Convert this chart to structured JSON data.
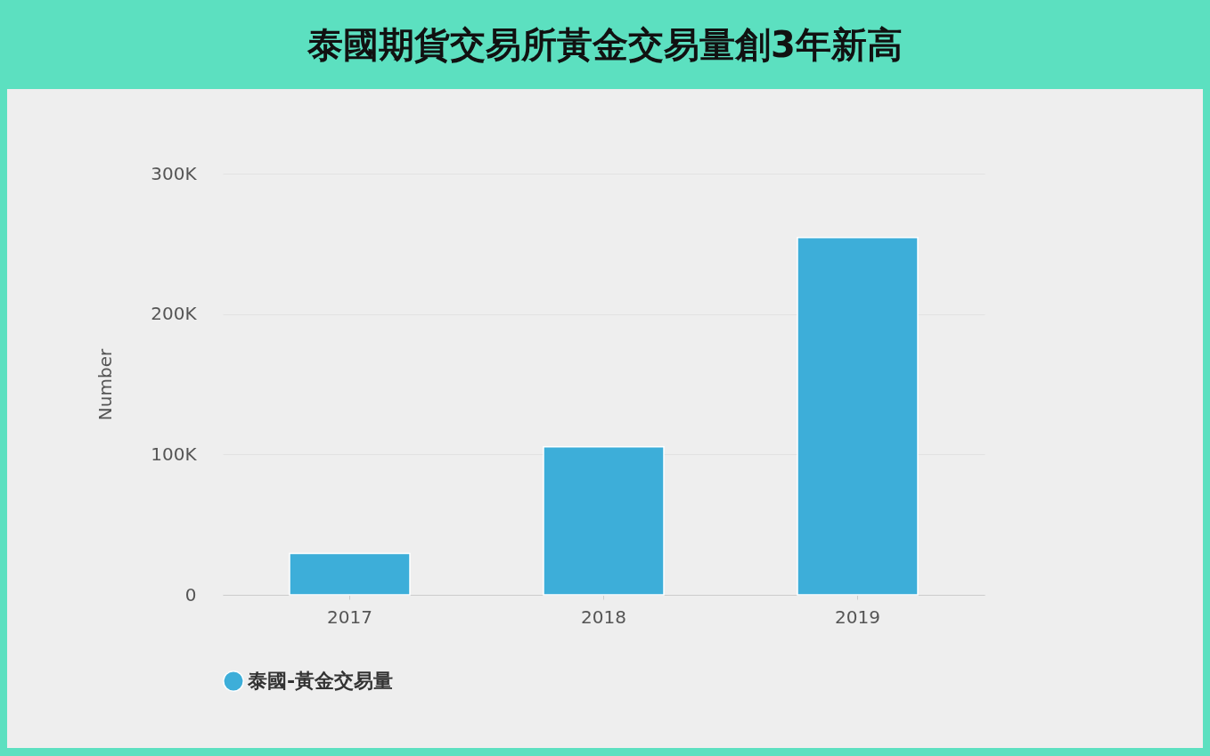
{
  "chart_data": {
    "type": "bar",
    "title": "泰國期貨交易所黃金交易量創3年新高",
    "ylabel": "Number",
    "categories": [
      "2017",
      "2018",
      "2019"
    ],
    "series": [
      {
        "name": "泰國-黃金交易量",
        "color": "#3daed9",
        "values": [
          29500,
          105500,
          254500
        ]
      }
    ],
    "ylim": [
      0,
      300000
    ],
    "yticks": [
      {
        "value": 0,
        "label": "0"
      },
      {
        "value": 100000,
        "label": "100K"
      },
      {
        "value": 200000,
        "label": "200K"
      },
      {
        "value": 300000,
        "label": "300K"
      }
    ],
    "grid": "y",
    "legend": "bottom"
  }
}
